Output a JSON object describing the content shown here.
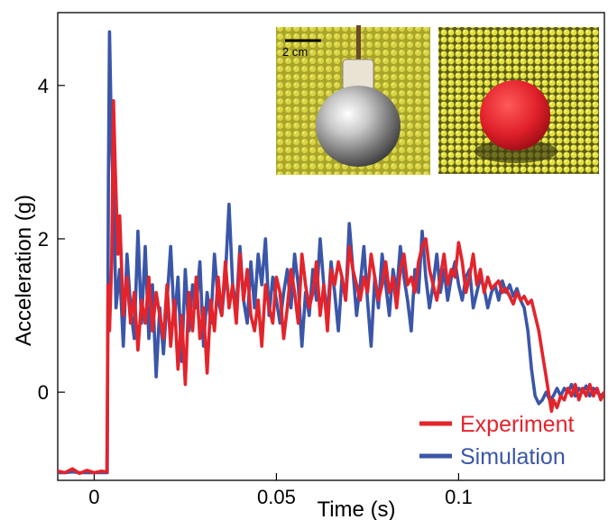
{
  "chart_data": {
    "type": "line",
    "xlabel": "Time (s)",
    "ylabel": "Acceleration (g)",
    "xlim": [
      -0.01,
      0.14
    ],
    "ylim": [
      -1.15,
      4.95
    ],
    "xticks": [
      0,
      0.05,
      0.1
    ],
    "xtick_labels": [
      "0",
      "0.05",
      "0.1"
    ],
    "yticks": [
      0,
      2,
      4
    ],
    "ytick_labels": [
      "0",
      "2",
      "4"
    ],
    "grid": false,
    "legend_position": "bottom-right",
    "colors": {
      "experiment": "#e3242b",
      "simulation": "#3a56a8"
    },
    "series": [
      {
        "name": "Experiment",
        "color": "#e3242b",
        "x": [
          -0.01,
          -0.008,
          -0.006,
          -0.004,
          -0.002,
          0.0,
          0.002,
          0.0035,
          0.0038,
          0.0042,
          0.0048,
          0.0053,
          0.0058,
          0.0065,
          0.007,
          0.008,
          0.009,
          0.01,
          0.011,
          0.012,
          0.013,
          0.014,
          0.015,
          0.016,
          0.017,
          0.018,
          0.019,
          0.02,
          0.021,
          0.022,
          0.023,
          0.024,
          0.025,
          0.026,
          0.027,
          0.028,
          0.029,
          0.03,
          0.031,
          0.032,
          0.033,
          0.034,
          0.035,
          0.036,
          0.037,
          0.038,
          0.039,
          0.04,
          0.041,
          0.042,
          0.043,
          0.044,
          0.045,
          0.046,
          0.047,
          0.048,
          0.049,
          0.05,
          0.051,
          0.052,
          0.053,
          0.054,
          0.055,
          0.056,
          0.057,
          0.058,
          0.059,
          0.06,
          0.061,
          0.062,
          0.063,
          0.064,
          0.065,
          0.066,
          0.067,
          0.068,
          0.069,
          0.07,
          0.071,
          0.072,
          0.073,
          0.074,
          0.075,
          0.076,
          0.077,
          0.078,
          0.079,
          0.08,
          0.081,
          0.082,
          0.083,
          0.084,
          0.085,
          0.086,
          0.087,
          0.088,
          0.089,
          0.09,
          0.091,
          0.092,
          0.093,
          0.094,
          0.095,
          0.096,
          0.097,
          0.098,
          0.099,
          0.1,
          0.101,
          0.102,
          0.103,
          0.104,
          0.105,
          0.106,
          0.107,
          0.108,
          0.109,
          0.11,
          0.111,
          0.112,
          0.113,
          0.114,
          0.115,
          0.116,
          0.117,
          0.118,
          0.119,
          0.12,
          0.121,
          0.122,
          0.123,
          0.124,
          0.125,
          0.1255,
          0.126,
          0.127,
          0.128,
          0.129,
          0.13,
          0.131,
          0.132,
          0.133,
          0.134,
          0.135,
          0.136,
          0.137,
          0.138,
          0.139,
          0.14
        ],
        "y": [
          -1.03,
          -1.05,
          -1.0,
          -1.06,
          -1.02,
          -1.05,
          -1.03,
          -1.04,
          1.4,
          0.8,
          1.7,
          3.8,
          2.9,
          1.8,
          2.3,
          1.0,
          1.5,
          0.9,
          1.3,
          0.55,
          1.2,
          0.9,
          1.5,
          0.8,
          1.3,
          1.0,
          0.7,
          1.4,
          0.6,
          1.2,
          0.3,
          1.0,
          0.1,
          1.3,
          0.8,
          1.5,
          0.7,
          1.1,
          0.25,
          1.2,
          0.8,
          1.5,
          1.0,
          1.7,
          1.1,
          1.4,
          0.9,
          1.8,
          1.2,
          1.6,
          1.0,
          0.8,
          1.2,
          0.6,
          1.4,
          1.1,
          0.9,
          1.5,
          1.3,
          0.7,
          1.1,
          1.6,
          1.3,
          0.9,
          1.8,
          1.4,
          1.1,
          1.3,
          1.7,
          1.0,
          1.4,
          0.8,
          1.6,
          1.4,
          1.7,
          1.5,
          1.2,
          1.9,
          1.6,
          1.4,
          1.2,
          1.5,
          1.3,
          1.8,
          1.5,
          1.2,
          1.4,
          1.7,
          1.3,
          1.5,
          1.1,
          1.6,
          1.8,
          1.4,
          1.5,
          1.3,
          1.7,
          1.9,
          2.0,
          1.6,
          1.4,
          1.2,
          1.5,
          1.8,
          1.4,
          1.6,
          1.5,
          1.95,
          1.7,
          1.3,
          1.5,
          1.8,
          1.4,
          1.6,
          1.3,
          1.5,
          1.35,
          1.4,
          1.45,
          1.3,
          1.35,
          1.25,
          1.15,
          1.3,
          1.2,
          1.25,
          1.15,
          1.2,
          1.0,
          0.8,
          0.5,
          0.2,
          -0.1,
          -0.25,
          -0.1,
          -0.2,
          -0.05,
          -0.1,
          0.05,
          -0.05,
          0.1,
          -0.1,
          0.05,
          -0.05,
          0.1,
          -0.05,
          0.05,
          -0.1,
          0.0
        ]
      },
      {
        "name": "Simulation",
        "color": "#3a56a8",
        "x": [
          -0.01,
          -0.008,
          -0.006,
          -0.004,
          -0.002,
          0.0,
          0.002,
          0.0036,
          0.0039,
          0.0042,
          0.0048,
          0.0055,
          0.006,
          0.007,
          0.008,
          0.009,
          0.01,
          0.011,
          0.012,
          0.013,
          0.014,
          0.015,
          0.016,
          0.017,
          0.018,
          0.019,
          0.02,
          0.021,
          0.022,
          0.023,
          0.024,
          0.025,
          0.026,
          0.027,
          0.028,
          0.029,
          0.03,
          0.031,
          0.032,
          0.033,
          0.034,
          0.035,
          0.036,
          0.037,
          0.038,
          0.039,
          0.04,
          0.041,
          0.042,
          0.043,
          0.044,
          0.045,
          0.046,
          0.047,
          0.048,
          0.049,
          0.05,
          0.051,
          0.052,
          0.053,
          0.054,
          0.055,
          0.056,
          0.057,
          0.058,
          0.059,
          0.06,
          0.061,
          0.062,
          0.063,
          0.064,
          0.065,
          0.066,
          0.067,
          0.068,
          0.069,
          0.07,
          0.071,
          0.072,
          0.073,
          0.074,
          0.075,
          0.076,
          0.077,
          0.078,
          0.079,
          0.08,
          0.081,
          0.082,
          0.083,
          0.084,
          0.085,
          0.086,
          0.087,
          0.088,
          0.089,
          0.09,
          0.091,
          0.092,
          0.093,
          0.094,
          0.095,
          0.096,
          0.097,
          0.098,
          0.099,
          0.1,
          0.101,
          0.102,
          0.103,
          0.104,
          0.105,
          0.106,
          0.107,
          0.108,
          0.109,
          0.11,
          0.111,
          0.112,
          0.113,
          0.114,
          0.115,
          0.116,
          0.117,
          0.118,
          0.119,
          0.12,
          0.121,
          0.122,
          0.123,
          0.124,
          0.125,
          0.126,
          0.127,
          0.128,
          0.129,
          0.13,
          0.131,
          0.132,
          0.133,
          0.134,
          0.135,
          0.136,
          0.137,
          0.138,
          0.139,
          0.14
        ],
        "y": [
          -1.05,
          -1.05,
          -1.04,
          -1.05,
          -1.05,
          -1.05,
          -1.05,
          -1.05,
          2.8,
          4.7,
          3.2,
          2.2,
          1.1,
          1.6,
          0.6,
          1.8,
          1.1,
          0.7,
          2.1,
          0.9,
          1.9,
          0.7,
          1.4,
          0.2,
          1.1,
          0.5,
          1.2,
          1.9,
          0.9,
          1.5,
          0.4,
          1.6,
          0.8,
          1.4,
          1.1,
          1.7,
          0.6,
          1.3,
          0.9,
          1.8,
          1.2,
          1.0,
          1.5,
          2.45,
          1.4,
          1.1,
          1.9,
          1.2,
          0.9,
          1.7,
          1.1,
          1.8,
          1.4,
          2.0,
          1.0,
          1.5,
          1.2,
          0.9,
          1.3,
          1.6,
          1.1,
          1.8,
          1.4,
          0.6,
          1.3,
          1.0,
          1.6,
          1.2,
          2.0,
          1.4,
          1.0,
          1.7,
          1.3,
          0.8,
          1.5,
          1.2,
          2.2,
          1.6,
          1.0,
          1.4,
          1.9,
          1.2,
          0.6,
          1.5,
          1.1,
          1.8,
          1.4,
          1.0,
          1.6,
          1.3,
          1.9,
          1.5,
          1.2,
          0.8,
          1.6,
          1.3,
          2.1,
          1.5,
          1.1,
          1.4,
          1.8,
          1.3,
          1.6,
          1.2,
          1.5,
          1.7,
          1.4,
          1.2,
          1.5,
          1.6,
          1.1,
          1.3,
          1.5,
          1.35,
          1.1,
          1.3,
          1.4,
          1.2,
          1.45,
          1.3,
          1.4,
          1.25,
          1.35,
          1.2,
          1.1,
          0.8,
          0.3,
          -0.05,
          -0.15,
          -0.1,
          0.0,
          -0.1,
          -0.05,
          0.05,
          -0.05,
          0.05,
          0.0,
          0.1,
          -0.05,
          0.05,
          0.0,
          0.08,
          -0.05,
          0.05,
          0.0,
          -0.05,
          0.0
        ]
      }
    ]
  },
  "inset": {
    "scale_bar_label": "2 cm",
    "left_photo": {
      "icon": "metal-sphere-on-granular-bed-photo",
      "bed_color": "#c9c43a",
      "sphere_color": "#b8b8b8"
    },
    "right_photo": {
      "icon": "red-sphere-in-simulated-grains-render",
      "bed_color": "#d4d23a",
      "sphere_color": "#e0202a"
    }
  }
}
